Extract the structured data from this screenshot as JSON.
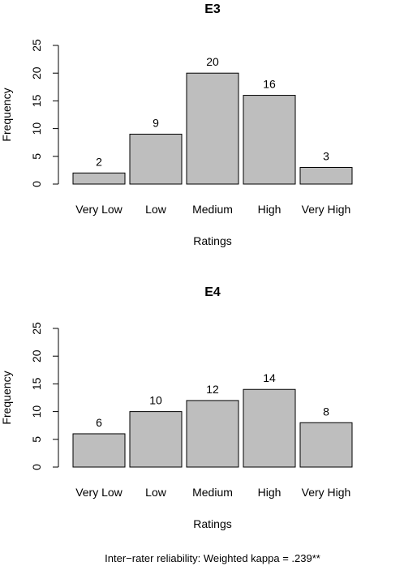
{
  "chart_data": [
    {
      "type": "bar",
      "title": "E3",
      "categories": [
        "Very Low",
        "Low",
        "Medium",
        "High",
        "Very High"
      ],
      "values": [
        2,
        9,
        20,
        16,
        3
      ],
      "xlabel": "Ratings",
      "ylabel": "Frequency",
      "ylim": [
        0,
        25
      ],
      "yticks": [
        0,
        5,
        10,
        15,
        20,
        25
      ],
      "bar_color": "#bebebe",
      "grid": false
    },
    {
      "type": "bar",
      "title": "E4",
      "categories": [
        "Very Low",
        "Low",
        "Medium",
        "High",
        "Very High"
      ],
      "values": [
        6,
        10,
        12,
        14,
        8
      ],
      "xlabel": "Ratings",
      "ylabel": "Frequency",
      "ylim": [
        0,
        25
      ],
      "yticks": [
        0,
        5,
        10,
        15,
        20,
        25
      ],
      "bar_color": "#bebebe",
      "grid": false
    }
  ],
  "footnote": "Inter−rater reliability: Weighted kappa = .239**"
}
